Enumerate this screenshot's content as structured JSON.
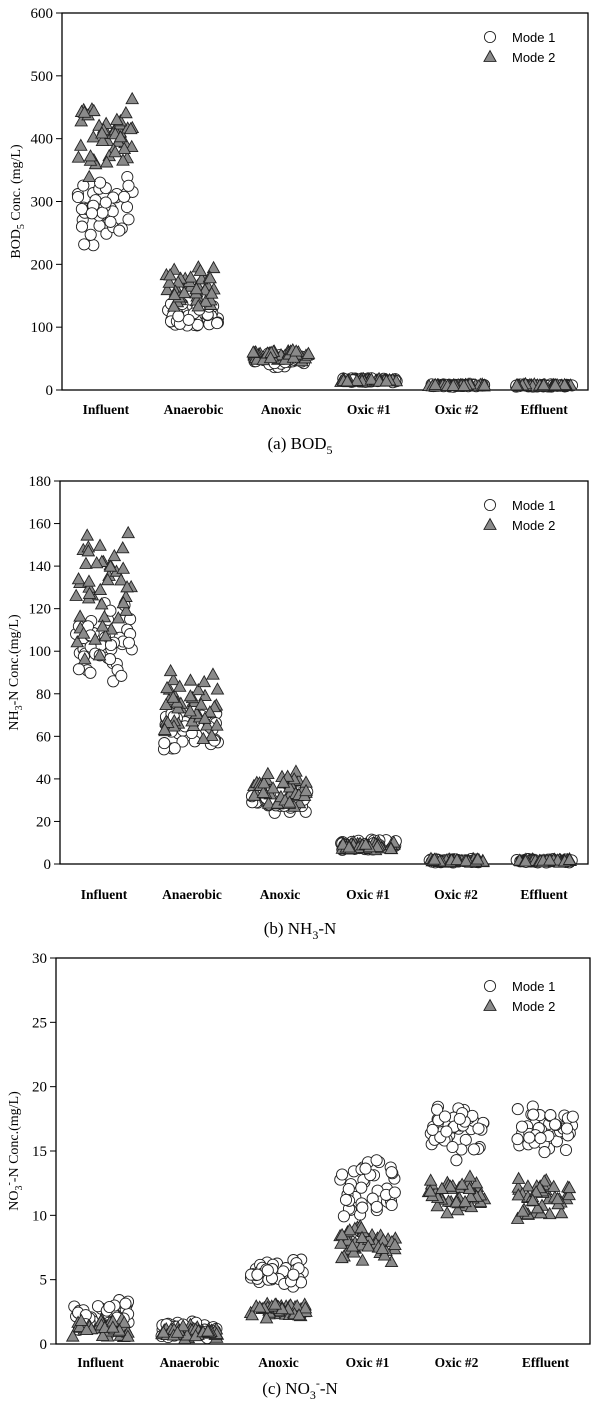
{
  "chart_data": [
    {
      "type": "scatter",
      "panel_label": "(a)",
      "caption_main": "BOD",
      "caption_sub": "5",
      "caption_rest": "",
      "ylabel_main": "BOD",
      "ylabel_sub": "5",
      "ylabel_rest": " Conc. (mg/L)",
      "ylim": [
        0,
        600
      ],
      "yticks": [
        0,
        100,
        200,
        300,
        400,
        500,
        600
      ],
      "categories": [
        "Influent",
        "Anaerobic",
        "Anoxic",
        "Oxic #1",
        "Oxic #2",
        "Effluent"
      ],
      "legend": [
        "Mode 1",
        "Mode 2"
      ],
      "legend_position": "top-right",
      "series": [
        {
          "name": "Mode 1",
          "marker": "circle",
          "ranges": [
            [
              225,
              350
            ],
            [
              95,
              140
            ],
            [
              35,
              60
            ],
            [
              12,
              20
            ],
            [
              5,
              9
            ],
            [
              5,
              9
            ]
          ]
        },
        {
          "name": "Mode 2",
          "marker": "triangle",
          "ranges": [
            [
              330,
              475
            ],
            [
              125,
              200
            ],
            [
              45,
              65
            ],
            [
              12,
              18
            ],
            [
              5,
              9
            ],
            [
              5,
              9
            ]
          ]
        }
      ]
    },
    {
      "type": "scatter",
      "panel_label": "(b)",
      "caption_main": "NH",
      "caption_sub": "3",
      "caption_rest": "-N",
      "ylabel_main": "NH",
      "ylabel_sub": "3",
      "ylabel_rest": "-N  Conc.(mg/L)",
      "ylim": [
        0,
        180
      ],
      "yticks": [
        0,
        20,
        40,
        60,
        80,
        100,
        120,
        140,
        160,
        180
      ],
      "categories": [
        "Influent",
        "Anaerobic",
        "Anoxic",
        "Oxic #1",
        "Oxic #2",
        "Effluent"
      ],
      "legend": [
        "Mode 1",
        "Mode 2"
      ],
      "legend_position": "top-right",
      "series": [
        {
          "name": "Mode 1",
          "marker": "circle",
          "ranges": [
            [
              85,
              125
            ],
            [
              51,
              74
            ],
            [
              22,
              36
            ],
            [
              6,
              12
            ],
            [
              0.5,
              2.5
            ],
            [
              0.5,
              2.5
            ]
          ]
        },
        {
          "name": "Mode 2",
          "marker": "triangle",
          "ranges": [
            [
              95,
              160
            ],
            [
              57,
              95
            ],
            [
              25,
              44
            ],
            [
              6,
              11
            ],
            [
              0.5,
              2.5
            ],
            [
              0.5,
              2.5
            ]
          ]
        }
      ]
    },
    {
      "type": "scatter",
      "panel_label": "(c)",
      "caption_main": "NO",
      "caption_sub": "3",
      "caption_sup": "-",
      "caption_rest": "-N",
      "ylabel_main": "NO",
      "ylabel_sub": "3",
      "ylabel_sup": "-",
      "ylabel_rest": "-N  Conc.(mg/L)",
      "ylim": [
        0,
        30
      ],
      "yticks": [
        0,
        5,
        10,
        15,
        20,
        25,
        30
      ],
      "categories": [
        "Influent",
        "Anaerobic",
        "Anoxic",
        "Oxic #1",
        "Oxic #2",
        "Effluent"
      ],
      "legend": [
        "Mode 1",
        "Mode 2"
      ],
      "legend_position": "top-right",
      "series": [
        {
          "name": "Mode 1",
          "marker": "circle",
          "ranges": [
            [
              0.4,
              3.6
            ],
            [
              0.4,
              1.9
            ],
            [
              4.3,
              6.6
            ],
            [
              9.5,
              14.5
            ],
            [
              14.2,
              19.0
            ],
            [
              14.2,
              19.0
            ]
          ]
        },
        {
          "name": "Mode 2",
          "marker": "triangle",
          "ranges": [
            [
              0.3,
              2.3
            ],
            [
              0.3,
              1.5
            ],
            [
              1.9,
              3.3
            ],
            [
              6.2,
              9.5
            ],
            [
              9.5,
              13.5
            ],
            [
              9.5,
              13.2
            ]
          ]
        }
      ]
    }
  ]
}
